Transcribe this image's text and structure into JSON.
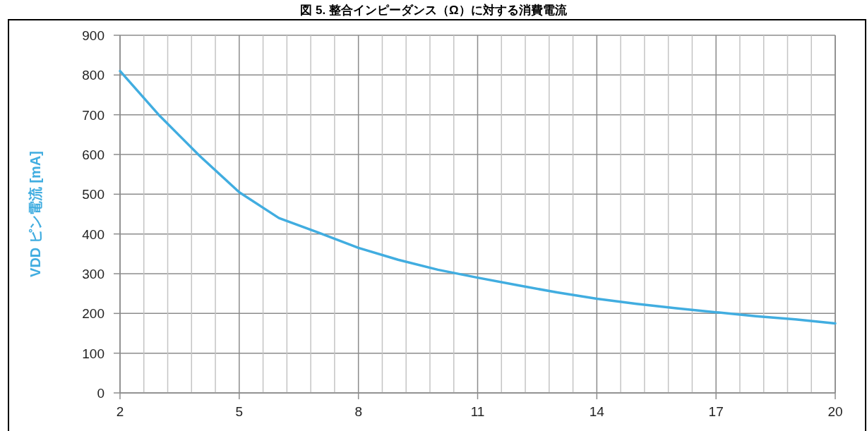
{
  "chart_data": {
    "type": "line",
    "title": "図 5. 整合インピーダンス（Ω）に対する消費電流",
    "ylabel": "VDD ピン電流 [mA]",
    "x": [
      2,
      3,
      4,
      5,
      6,
      7,
      8,
      9,
      10,
      11,
      12,
      13,
      14,
      15,
      16,
      17,
      18,
      19,
      20
    ],
    "series": [
      {
        "color": "#41ade0",
        "values": [
          810,
          697,
          597,
          505,
          440,
          403,
          365,
          335,
          310,
          290,
          271,
          253,
          237,
          224,
          213,
          203,
          193,
          185,
          175
        ]
      }
    ],
    "xlim": [
      2,
      20
    ],
    "ylim": [
      0,
      900
    ],
    "xticks": [
      2,
      {
        "value": 2.6,
        "label": null
      },
      {
        "value": 3.2,
        "label": null
      },
      {
        "value": 3.8,
        "label": null
      },
      {
        "value": 4.4,
        "label": null
      },
      5,
      {
        "value": 5.6,
        "label": null
      },
      {
        "value": 6.2,
        "label": null
      },
      {
        "value": 6.8,
        "label": null
      },
      {
        "value": 7.4,
        "label": null
      },
      8,
      {
        "value": 8.6,
        "label": null
      },
      {
        "value": 9.2,
        "label": null
      },
      {
        "value": 9.8,
        "label": null
      },
      {
        "value": 10.4,
        "label": null
      },
      11,
      {
        "value": 11.6,
        "label": null
      },
      {
        "value": 12.2,
        "label": null
      },
      {
        "value": 12.8,
        "label": null
      },
      {
        "value": 13.4,
        "label": null
      },
      14,
      {
        "value": 14.6,
        "label": null
      },
      {
        "value": 15.2,
        "label": null
      },
      {
        "value": 15.8,
        "label": null
      },
      {
        "value": 16.4,
        "label": null
      },
      17,
      {
        "value": 17.6,
        "label": null
      },
      {
        "value": 18.2,
        "label": null
      },
      {
        "value": 18.8,
        "label": null
      },
      {
        "value": 19.4,
        "label": null
      },
      20
    ],
    "yticks": [
      0,
      100,
      200,
      300,
      400,
      500,
      600,
      700,
      800,
      900
    ],
    "grid": true,
    "marker": "none",
    "line_style": "solid"
  }
}
